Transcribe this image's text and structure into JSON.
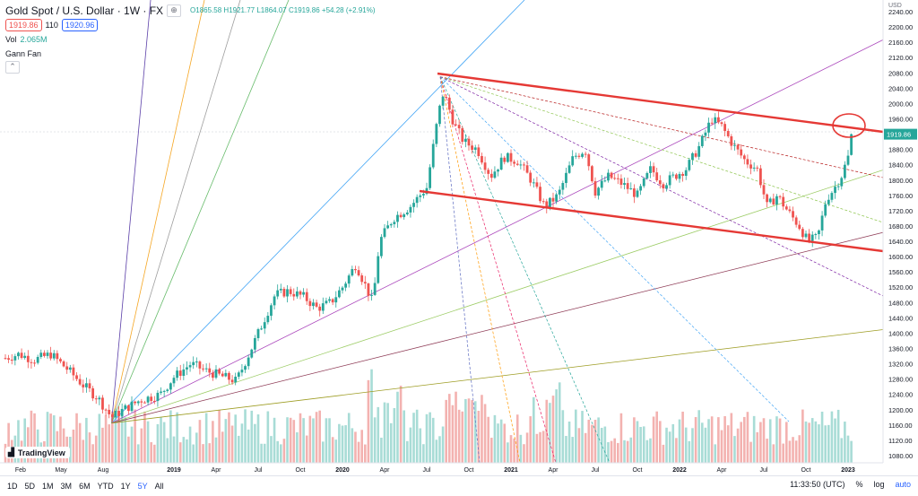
{
  "legend": {
    "title": "Gold Spot / U.S. Dollar · 1W · FX",
    "ohlc": {
      "o": "O1865.58",
      "h": "H1921.77",
      "l": "L1864.07",
      "c": "C1919.86",
      "chg": "+54.28 (+2.91%)"
    },
    "bid": "1919.86",
    "spread": "110",
    "ask": "1920.96",
    "vol_label": "Vol",
    "vol_value": "2.065M",
    "tool_label": "Gann Fan"
  },
  "toolbar": {
    "timeframes": [
      "1D",
      "5D",
      "1M",
      "3M",
      "6M",
      "YTD",
      "1Y",
      "5Y",
      "All"
    ],
    "active_timeframe": "5Y",
    "clock": "11:33:50 (UTC)",
    "percent": "%",
    "log": "log",
    "auto": "auto"
  },
  "logo_text": "TradingView",
  "colors": {
    "up": "#26a69a",
    "down": "#ef5350",
    "vol_up": "#a8dcd6",
    "vol_down": "#f3b2b0",
    "channel": "#e53935",
    "price_badge": "#26a69a"
  },
  "chart_data": {
    "type": "candlestick",
    "currency": "USD",
    "last_price": "1919.86",
    "y_axis_ticks": [
      1080,
      1120,
      1160,
      1200,
      1240,
      1280,
      1320,
      1360,
      1400,
      1440,
      1480,
      1520,
      1560,
      1600,
      1640,
      1680,
      1720,
      1760,
      1800,
      1840,
      1880,
      1920,
      1960,
      2000,
      2040,
      2080,
      2120,
      2160,
      2200,
      2240
    ],
    "ylim": [
      1060,
      2260
    ],
    "x_axis_ticks": [
      "Feb",
      "May",
      "Aug",
      "2019",
      "Apr",
      "Jul",
      "Oct",
      "2020",
      "Apr",
      "Jul",
      "Oct",
      "2021",
      "Apr",
      "Jul",
      "Oct",
      "2022",
      "Apr",
      "Jul",
      "Oct",
      "2023"
    ],
    "x_tick_years": [
      2018.09,
      2018.33,
      2018.58,
      2019.0,
      2019.25,
      2019.5,
      2019.75,
      2020.0,
      2020.25,
      2020.5,
      2020.75,
      2021.0,
      2021.25,
      2021.5,
      2021.75,
      2022.0,
      2022.25,
      2022.5,
      2022.75,
      2023.0
    ],
    "price_path": [
      [
        2018.0,
        1335
      ],
      [
        2018.08,
        1345
      ],
      [
        2018.17,
        1330
      ],
      [
        2018.27,
        1345
      ],
      [
        2018.37,
        1305
      ],
      [
        2018.46,
        1265
      ],
      [
        2018.55,
        1230
      ],
      [
        2018.63,
        1180
      ],
      [
        2018.7,
        1200
      ],
      [
        2018.8,
        1225
      ],
      [
        2018.92,
        1240
      ],
      [
        2019.0,
        1285
      ],
      [
        2019.1,
        1320
      ],
      [
        2019.2,
        1300
      ],
      [
        2019.3,
        1285
      ],
      [
        2019.37,
        1275
      ],
      [
        2019.45,
        1350
      ],
      [
        2019.52,
        1420
      ],
      [
        2019.6,
        1500
      ],
      [
        2019.68,
        1510
      ],
      [
        2019.77,
        1495
      ],
      [
        2019.85,
        1465
      ],
      [
        2019.93,
        1480
      ],
      [
        2020.0,
        1520
      ],
      [
        2020.08,
        1580
      ],
      [
        2020.18,
        1480
      ],
      [
        2020.22,
        1640
      ],
      [
        2020.3,
        1700
      ],
      [
        2020.4,
        1730
      ],
      [
        2020.5,
        1780
      ],
      [
        2020.57,
        1975
      ],
      [
        2020.6,
        2030
      ],
      [
        2020.66,
        1950
      ],
      [
        2020.72,
        1900
      ],
      [
        2020.8,
        1880
      ],
      [
        2020.88,
        1810
      ],
      [
        2020.96,
        1860
      ],
      [
        2021.04,
        1850
      ],
      [
        2021.12,
        1800
      ],
      [
        2021.2,
        1730
      ],
      [
        2021.28,
        1760
      ],
      [
        2021.37,
        1860
      ],
      [
        2021.44,
        1880
      ],
      [
        2021.5,
        1770
      ],
      [
        2021.58,
        1810
      ],
      [
        2021.66,
        1790
      ],
      [
        2021.75,
        1760
      ],
      [
        2021.83,
        1830
      ],
      [
        2021.9,
        1790
      ],
      [
        2021.97,
        1810
      ],
      [
        2022.04,
        1830
      ],
      [
        2022.12,
        1890
      ],
      [
        2022.19,
        1960
      ],
      [
        2022.25,
        1940
      ],
      [
        2022.32,
        1890
      ],
      [
        2022.39,
        1850
      ],
      [
        2022.46,
        1830
      ],
      [
        2022.52,
        1730
      ],
      [
        2022.58,
        1760
      ],
      [
        2022.64,
        1720
      ],
      [
        2022.71,
        1680
      ],
      [
        2022.76,
        1640
      ],
      [
        2022.82,
        1650
      ],
      [
        2022.87,
        1750
      ],
      [
        2022.92,
        1780
      ],
      [
        2022.96,
        1810
      ],
      [
        2023.0,
        1860
      ],
      [
        2023.03,
        1920
      ]
    ],
    "annotations": [
      "Gann Fan",
      "Descending channel (upper and lower red lines)",
      "Red circle at upper channel line near 1920"
    ],
    "volume": "Volume histogram at bottom"
  }
}
